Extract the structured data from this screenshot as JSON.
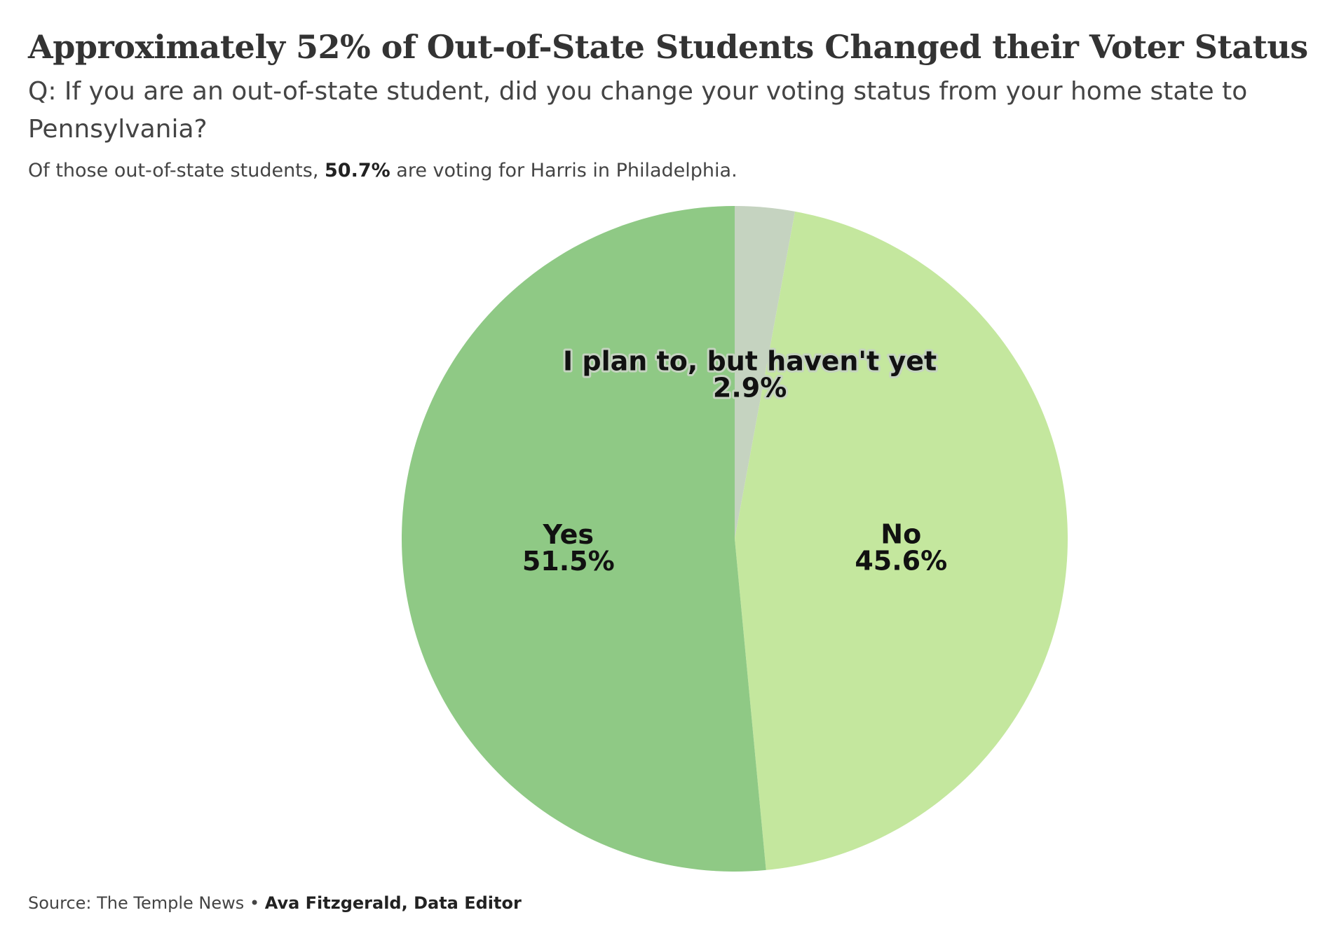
{
  "chart_data": {
    "type": "pie",
    "title": "Approximately 52% of Out-of-State Students Changed their Voter Status",
    "subtitle": "Q: If you are an out-of-state student, did you change your voting status from your home state to Pennsylvania?",
    "note": {
      "before": "Of those out-of-state students,",
      "highlight": "50.7%",
      "after": "are voting for Harris in Philadelphia."
    },
    "categories": [
      "I plan to, but haven't yet",
      "No",
      "Yes"
    ],
    "values": [
      2.9,
      45.6,
      51.5
    ],
    "value_labels": [
      "2.9%",
      "45.6%",
      "51.5%"
    ],
    "colors": [
      "#c5d3c0",
      "#c4e79e",
      "#8fc985"
    ],
    "source": "Source: The Temple News",
    "separator": "•",
    "credit": "Ava Fitzgerald, Data Editor"
  }
}
